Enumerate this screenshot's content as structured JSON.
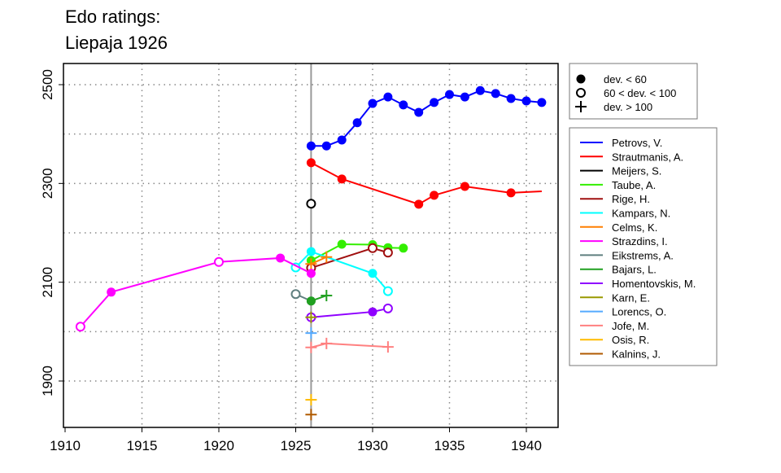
{
  "chart_data": {
    "type": "line",
    "title": [
      "Edo ratings:",
      "Liepaja 1926"
    ],
    "xlabel": "",
    "ylabel": "",
    "xlim": [
      1909.8,
      1942.2
    ],
    "ylim": [
      1808,
      2545
    ],
    "x_ticks": [
      1910,
      1915,
      1920,
      1925,
      1930,
      1935,
      1940
    ],
    "y_ticks": [
      1900,
      2100,
      2300,
      2500
    ],
    "y_grid": [
      1900,
      2000,
      2100,
      2200,
      2300,
      2400,
      2500
    ],
    "x_grid": [
      1915,
      1920,
      1925,
      1930,
      1935,
      1940
    ],
    "highlight_year": 1926,
    "marker_legend": [
      {
        "symbol": "filled",
        "label": "dev. < 60"
      },
      {
        "symbol": "open",
        "label": "60 < dev. < 100"
      },
      {
        "symbol": "plus",
        "label": "dev. > 100"
      }
    ],
    "series": [
      {
        "name": "Petrovs, V.",
        "color": "#0000ff",
        "points": [
          [
            1926,
            2376,
            "f"
          ],
          [
            1927,
            2376,
            "f"
          ],
          [
            1928,
            2388,
            "f"
          ],
          [
            1929,
            2423,
            "f"
          ],
          [
            1930,
            2462,
            "f"
          ],
          [
            1931,
            2475,
            "f"
          ],
          [
            1932,
            2459,
            "f"
          ],
          [
            1933,
            2444,
            "f"
          ],
          [
            1934,
            2464,
            "f"
          ],
          [
            1935,
            2480,
            "f"
          ],
          [
            1936,
            2475,
            "f"
          ],
          [
            1937,
            2488,
            "f"
          ],
          [
            1938,
            2482,
            "f"
          ],
          [
            1939,
            2472,
            "f"
          ],
          [
            1940,
            2467,
            "f"
          ],
          [
            1941,
            2464,
            "f"
          ]
        ]
      },
      {
        "name": "Strautmanis, A.",
        "color": "#ff0000",
        "points": [
          [
            1926,
            2342,
            "f"
          ],
          [
            1928,
            2309,
            "f"
          ],
          [
            1933,
            2258,
            "f"
          ],
          [
            1934,
            2276,
            "f"
          ],
          [
            1936,
            2294,
            "f"
          ],
          [
            1939,
            2281,
            "f"
          ],
          [
            1941,
            2284,
            "n"
          ]
        ]
      },
      {
        "name": "Meijers, S.",
        "color": "#000000",
        "points": [
          [
            1926,
            2259,
            "o"
          ]
        ]
      },
      {
        "name": "Taube, A.",
        "color": "#33ee00",
        "points": [
          [
            1926,
            2144,
            "f"
          ],
          [
            1928,
            2177,
            "f"
          ],
          [
            1930,
            2176,
            "f"
          ],
          [
            1931,
            2170,
            "f"
          ],
          [
            1932,
            2169,
            "f"
          ]
        ]
      },
      {
        "name": "Rige, H.",
        "color": "#a01010",
        "points": [
          [
            1926,
            2129,
            "o"
          ],
          [
            1930,
            2169,
            "o"
          ],
          [
            1931,
            2160,
            "o"
          ]
        ]
      },
      {
        "name": "Kampars, N.",
        "color": "#00ffff",
        "points": [
          [
            1925,
            2130,
            "o"
          ],
          [
            1926,
            2162,
            "f"
          ],
          [
            1930,
            2118,
            "f"
          ],
          [
            1931,
            2082,
            "o"
          ]
        ]
      },
      {
        "name": "Celms, K.",
        "color": "#ff7f00",
        "points": [
          [
            1926,
            2137,
            "p"
          ],
          [
            1927,
            2151,
            "p"
          ]
        ]
      },
      {
        "name": "Strazdins, I.",
        "color": "#ff00ff",
        "points": [
          [
            1911,
            2010,
            "o"
          ],
          [
            1913,
            2080,
            "f"
          ],
          [
            1920,
            2141,
            "o"
          ],
          [
            1924,
            2149,
            "f"
          ],
          [
            1926,
            2118,
            "f"
          ]
        ]
      },
      {
        "name": "Eikstrems, A.",
        "color": "#5f7f7f",
        "points": [
          [
            1925,
            2076,
            "o"
          ],
          [
            1926,
            2062,
            "f"
          ]
        ]
      },
      {
        "name": "Bajars, L.",
        "color": "#20a020",
        "points": [
          [
            1926,
            2062,
            "f"
          ],
          [
            1927,
            2073,
            "p"
          ]
        ]
      },
      {
        "name": "Homentovskis, M.",
        "color": "#8f00ff",
        "points": [
          [
            1926,
            2029,
            "o"
          ],
          [
            1930,
            2040,
            "f"
          ],
          [
            1931,
            2047,
            "o"
          ]
        ]
      },
      {
        "name": "Karn, E.",
        "color": "#999900",
        "points": [
          [
            1926,
            2029,
            "p"
          ]
        ]
      },
      {
        "name": "Lorencs, O.",
        "color": "#55aaff",
        "points": [
          [
            1926,
            1997,
            "p"
          ]
        ]
      },
      {
        "name": "Jofe, M.",
        "color": "#ff8080",
        "points": [
          [
            1926,
            1968,
            "p"
          ],
          [
            1927,
            1976,
            "p"
          ],
          [
            1931,
            1969,
            "p"
          ]
        ]
      },
      {
        "name": "Osis, R.",
        "color": "#ffbb00",
        "points": [
          [
            1926,
            1862,
            "p"
          ]
        ]
      },
      {
        "name": "Kalnins, J.",
        "color": "#b05a00",
        "points": [
          [
            1926,
            1832,
            "p"
          ]
        ]
      }
    ]
  }
}
